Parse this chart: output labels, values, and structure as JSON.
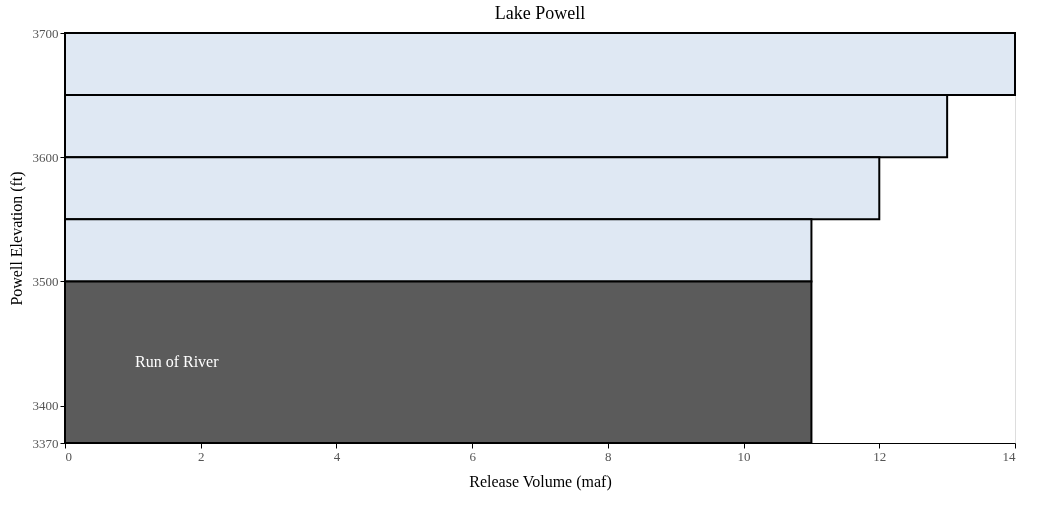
{
  "chart_data": {
    "type": "bar",
    "orientation": "horizontal",
    "title": "Lake Powell",
    "xlabel": "Release Volume (maf)",
    "ylabel": "Powell Elevation (ft)",
    "series": [
      {
        "color": "#dfe8f3",
        "x": [
          3675,
          3625,
          3575,
          3525
        ],
        "values": [
          14,
          13,
          12,
          11
        ]
      },
      {
        "name": "Run of River",
        "color": "#5b5b5b",
        "x": [
          3435
        ],
        "values": [
          11
        ]
      }
    ],
    "xlim": [
      0,
      14
    ],
    "xticks": [
      0,
      2,
      4,
      6,
      8,
      10,
      12,
      14
    ],
    "ylim": [
      3370,
      3700
    ],
    "yticks": [
      3370,
      3400,
      3500,
      3600,
      3700
    ],
    "grid": false
  }
}
